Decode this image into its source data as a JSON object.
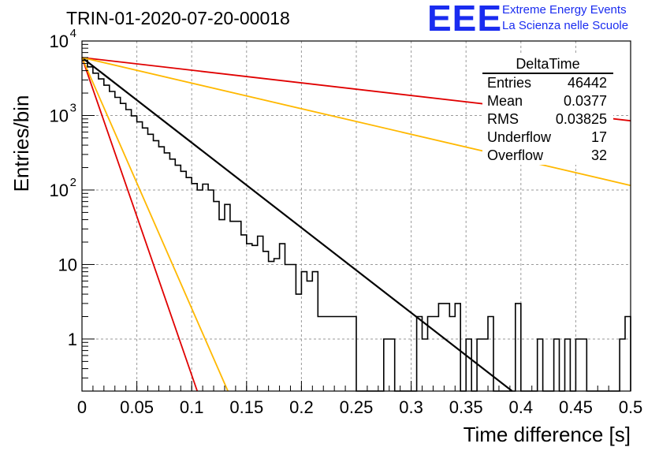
{
  "header": {
    "run_title": "TRIN-01-2020-07-20-00018"
  },
  "logo": {
    "mark": "EEE",
    "line1": "Extreme Energy Events",
    "line2": "La Scienza nelle Scuole"
  },
  "stats": {
    "title": "DeltaTime",
    "rows": [
      {
        "key": "Entries",
        "value": "46442"
      },
      {
        "key": "Mean",
        "value": "0.0377"
      },
      {
        "key": "RMS",
        "value": "0.03825"
      },
      {
        "key": "Underflow",
        "value": "17"
      },
      {
        "key": "Overflow",
        "value": "32"
      }
    ]
  },
  "colors": {
    "histogram": "#000000",
    "fit": "#000000",
    "red_curve": "#e00000",
    "orange_curve": "#ffb800"
  },
  "chart_data": {
    "type": "line",
    "xlabel": "Time difference [s]",
    "ylabel": "Entries/bin",
    "xlim": [
      0,
      0.5
    ],
    "ylim": [
      0.2,
      10000
    ],
    "y_scale": "log",
    "grid": true,
    "x_ticks": [
      "0",
      "0.05",
      "0.1",
      "0.15",
      "0.2",
      "0.25",
      "0.3",
      "0.35",
      "0.4",
      "0.45",
      "0.5"
    ],
    "x_tick_values": [
      0,
      0.05,
      0.1,
      0.15,
      0.2,
      0.25,
      0.3,
      0.35,
      0.4,
      0.45,
      0.5
    ],
    "y_ticks": [
      {
        "value": 1,
        "base": "1",
        "exp": ""
      },
      {
        "value": 10,
        "base": "10",
        "exp": ""
      },
      {
        "value": 100,
        "base": "10",
        "exp": "2"
      },
      {
        "value": 1000,
        "base": "10",
        "exp": "3"
      },
      {
        "value": 10000,
        "base": "10",
        "exp": "4"
      }
    ],
    "histogram": {
      "bin_width": 0.005,
      "x_start": 0,
      "counts": [
        5500,
        4500,
        3700,
        3100,
        2550,
        2100,
        1750,
        1450,
        1200,
        990,
        820,
        680,
        560,
        460,
        380,
        315,
        260,
        215,
        178,
        147,
        122,
        100,
        120,
        100,
        70,
        40,
        64,
        38,
        38,
        25,
        19,
        18,
        24,
        15,
        11,
        12,
        19,
        10,
        10,
        4,
        8,
        6,
        8,
        2,
        2,
        2,
        2,
        2,
        2,
        2,
        0.1,
        0.1,
        0.1,
        0.1,
        0.1,
        1,
        1,
        0.1,
        0.1,
        0.1,
        0.1,
        2,
        1,
        2,
        2,
        3,
        3,
        2,
        3,
        0.1,
        1,
        0.1,
        1,
        1,
        2,
        0.1,
        0.1,
        0.1,
        0.1,
        3,
        0.1,
        0.1,
        0.1,
        1,
        0.1,
        0.1,
        1,
        0.1,
        1,
        0.1,
        1,
        1,
        0.1,
        0.1,
        0.1,
        0.1,
        0.1,
        0.1,
        1,
        2
      ]
    },
    "series": [
      {
        "color": "black",
        "points": [
          [
            0,
            6000
          ],
          [
            0.392,
            0.2
          ]
        ]
      },
      {
        "color": "red",
        "points": [
          [
            0,
            6000
          ],
          [
            0.5,
            850
          ]
        ]
      },
      {
        "color": "orange",
        "points": [
          [
            0,
            6000
          ],
          [
            0.5,
            115
          ]
        ]
      },
      {
        "color": "red",
        "points": [
          [
            0,
            6000
          ],
          [
            0.105,
            0.2
          ]
        ]
      },
      {
        "color": "orange",
        "points": [
          [
            0,
            6000
          ],
          [
            0.133,
            0.2
          ]
        ]
      }
    ]
  }
}
